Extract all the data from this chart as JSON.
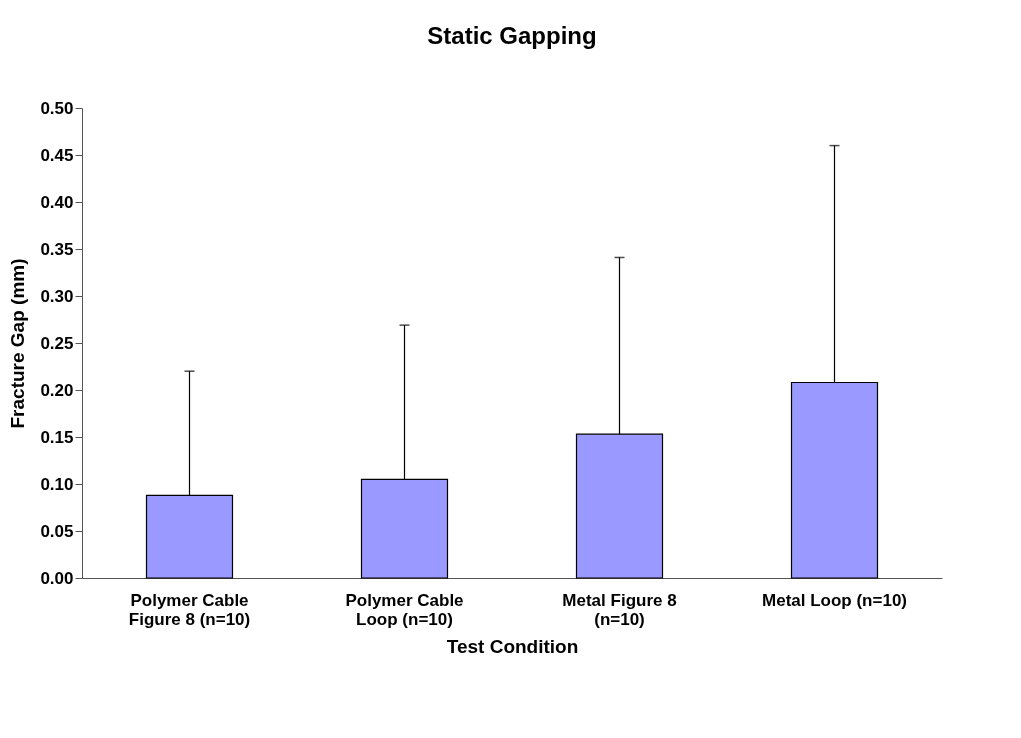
{
  "chart_data": {
    "type": "bar",
    "title": "Static Gapping",
    "xlabel": "Test Condition",
    "ylabel": "Fracture Gap (mm)",
    "categories": [
      "Polymer Cable\nFigure 8 (n=10)",
      "Polymer Cable\nLoop (n=10)",
      "Metal Figure 8\n(n=10)",
      "Metal Loop (n=10)"
    ],
    "values": [
      0.088,
      0.105,
      0.153,
      0.208
    ],
    "errors": [
      [
        0.088,
        0.22
      ],
      [
        0.105,
        0.269
      ],
      [
        0.153,
        0.341
      ],
      [
        0.208,
        0.46
      ]
    ],
    "color": "#9999ff",
    "ylim": [
      0,
      0.5
    ],
    "yticks": [
      {
        "value": 0,
        "label": "0.00"
      },
      {
        "value": 0.05,
        "label": "0.05"
      },
      {
        "value": 0.1,
        "label": "0.10"
      },
      {
        "value": 0.15,
        "label": "0.15"
      },
      {
        "value": 0.2,
        "label": "0.20"
      },
      {
        "value": 0.25,
        "label": "0.25"
      },
      {
        "value": 0.3,
        "label": "0.30"
      },
      {
        "value": 0.35,
        "label": "0.35"
      },
      {
        "value": 0.4,
        "label": "0.40"
      },
      {
        "value": 0.45,
        "label": "0.45"
      },
      {
        "value": 0.5,
        "label": "0.50"
      }
    ],
    "grid": false
  }
}
